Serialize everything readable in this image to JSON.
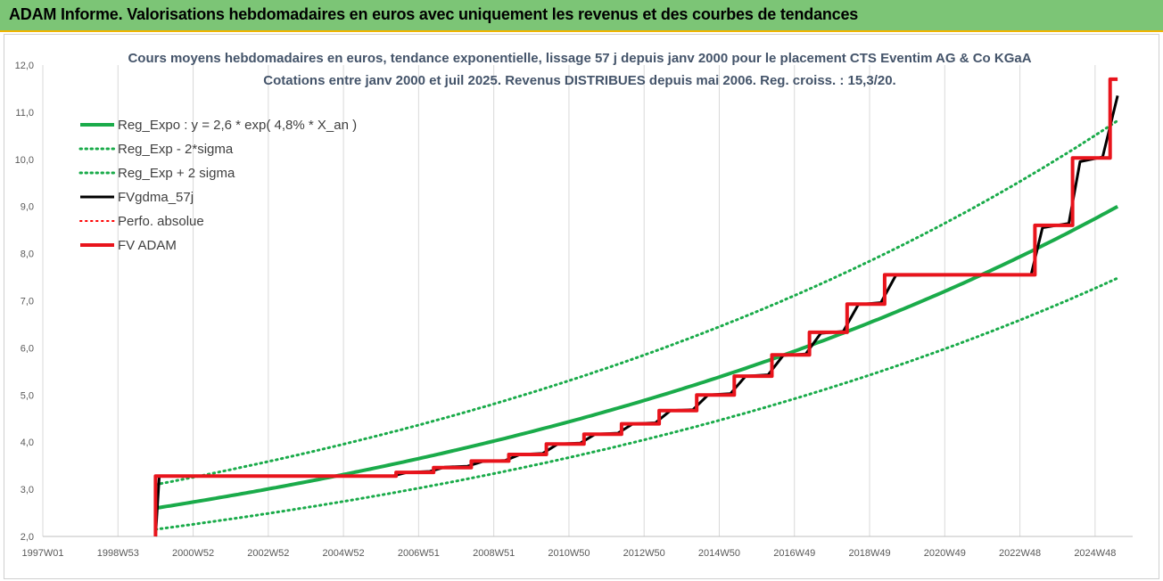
{
  "header": {
    "title": "ADAM Informe. Valorisations hebdomadaires en euros avec uniquement les revenus et des courbes de tendances"
  },
  "chart_data": {
    "type": "line",
    "title": "Cours moyens hebdomadaires en euros, tendance exponentielle, lissage 57 j depuis janv 2000 pour le placement CTS Eventim AG & Co KGaA",
    "subtitle": "Cotations entre janv 2000 et juil 2025. Revenus DISTRIBUES depuis mai 2006. Reg. croiss. : 15,3/20.",
    "xlabel": "",
    "ylabel": "",
    "x_tick_labels": [
      "1997W01",
      "1998W53",
      "2000W52",
      "2002W52",
      "2004W52",
      "2006W51",
      "2008W51",
      "2010W50",
      "2012W50",
      "2014W50",
      "2016W49",
      "2018W49",
      "2020W49",
      "2022W48",
      "2024W48"
    ],
    "x_tick_years": [
      1997.0,
      1999.0,
      2001.0,
      2003.0,
      2005.0,
      2007.0,
      2009.0,
      2011.0,
      2013.0,
      2015.0,
      2017.0,
      2019.0,
      2021.0,
      2023.0,
      2025.0
    ],
    "xlim": [
      1997.0,
      2026.0
    ],
    "y_tick_labels": [
      "2,0",
      "3,0",
      "4,0",
      "5,0",
      "6,0",
      "7,0",
      "8,0",
      "9,0",
      "10,0",
      "11,0",
      "12,0"
    ],
    "ylim": [
      2.0,
      12.0
    ],
    "grid": "vertical",
    "legend_position": "top-left",
    "series": [
      {
        "name": "Reg_Expo : y = 2,6 * exp( 4,8% *  X_an )",
        "color": "#1aab4a",
        "style": "solid",
        "points": [
          [
            2000.0,
            2.6
          ],
          [
            2005.0,
            3.3
          ],
          [
            2010.0,
            4.2
          ],
          [
            2015.0,
            5.35
          ],
          [
            2020.0,
            6.9
          ],
          [
            2025.6,
            9.0
          ]
        ]
      },
      {
        "name": "Reg_Exp - 2*sigma",
        "color": "#1aab4a",
        "style": "dotted",
        "points": [
          [
            2000.0,
            2.15
          ],
          [
            2005.0,
            2.75
          ],
          [
            2010.0,
            3.5
          ],
          [
            2015.0,
            4.48
          ],
          [
            2020.0,
            5.75
          ],
          [
            2025.6,
            7.48
          ]
        ]
      },
      {
        "name": "Reg_Exp + 2 sigma",
        "color": "#1aab4a",
        "style": "dotted",
        "points": [
          [
            2000.0,
            3.1
          ],
          [
            2005.0,
            3.95
          ],
          [
            2010.0,
            5.0
          ],
          [
            2015.0,
            6.35
          ],
          [
            2020.0,
            8.25
          ],
          [
            2025.6,
            10.82
          ]
        ]
      },
      {
        "name": "FVgdma_57j",
        "color": "#000000",
        "style": "solid",
        "points": [
          [
            2000.0,
            2.0
          ],
          [
            2000.1,
            3.28
          ],
          [
            2006.3,
            3.28
          ],
          [
            2006.7,
            3.36
          ],
          [
            2007.3,
            3.38
          ],
          [
            2007.7,
            3.47
          ],
          [
            2008.3,
            3.49
          ],
          [
            2008.7,
            3.59
          ],
          [
            2009.3,
            3.61
          ],
          [
            2009.7,
            3.74
          ],
          [
            2010.3,
            3.76
          ],
          [
            2010.7,
            3.96
          ],
          [
            2011.3,
            3.98
          ],
          [
            2011.7,
            4.17
          ],
          [
            2012.3,
            4.19
          ],
          [
            2012.7,
            4.39
          ],
          [
            2013.3,
            4.41
          ],
          [
            2013.7,
            4.67
          ],
          [
            2014.3,
            4.69
          ],
          [
            2014.7,
            5.0
          ],
          [
            2015.3,
            5.03
          ],
          [
            2015.7,
            5.4
          ],
          [
            2016.3,
            5.43
          ],
          [
            2016.7,
            5.84
          ],
          [
            2017.3,
            5.87
          ],
          [
            2017.7,
            6.31
          ],
          [
            2018.3,
            6.35
          ],
          [
            2018.7,
            6.92
          ],
          [
            2019.3,
            6.96
          ],
          [
            2019.7,
            7.54
          ],
          [
            2023.3,
            7.56
          ],
          [
            2023.6,
            8.55
          ],
          [
            2024.3,
            8.64
          ],
          [
            2024.6,
            9.95
          ],
          [
            2025.2,
            10.05
          ],
          [
            2025.6,
            11.35
          ]
        ]
      },
      {
        "name": "Perfo. absolue",
        "color": "#ff0000",
        "style": "dotted",
        "points": []
      },
      {
        "name": "FV ADAM",
        "color": "#e8141c",
        "style": "solid",
        "points": [
          [
            2000.0,
            2.0
          ],
          [
            2000.0,
            3.28
          ],
          [
            2006.4,
            3.28
          ],
          [
            2006.4,
            3.36
          ],
          [
            2007.4,
            3.36
          ],
          [
            2007.4,
            3.46
          ],
          [
            2008.4,
            3.46
          ],
          [
            2008.4,
            3.6
          ],
          [
            2009.4,
            3.6
          ],
          [
            2009.4,
            3.74
          ],
          [
            2010.4,
            3.74
          ],
          [
            2010.4,
            3.96
          ],
          [
            2011.4,
            3.96
          ],
          [
            2011.4,
            4.17
          ],
          [
            2012.4,
            4.17
          ],
          [
            2012.4,
            4.39
          ],
          [
            2013.4,
            4.39
          ],
          [
            2013.4,
            4.67
          ],
          [
            2014.4,
            4.67
          ],
          [
            2014.4,
            5.0
          ],
          [
            2015.4,
            5.0
          ],
          [
            2015.4,
            5.4
          ],
          [
            2016.4,
            5.4
          ],
          [
            2016.4,
            5.85
          ],
          [
            2017.4,
            5.85
          ],
          [
            2017.4,
            6.33
          ],
          [
            2018.4,
            6.33
          ],
          [
            2018.4,
            6.93
          ],
          [
            2019.4,
            6.93
          ],
          [
            2019.4,
            7.55
          ],
          [
            2023.4,
            7.55
          ],
          [
            2023.4,
            8.6
          ],
          [
            2024.4,
            8.6
          ],
          [
            2024.4,
            10.03
          ],
          [
            2025.4,
            10.03
          ],
          [
            2025.4,
            11.7
          ],
          [
            2025.6,
            11.7
          ]
        ]
      }
    ]
  }
}
